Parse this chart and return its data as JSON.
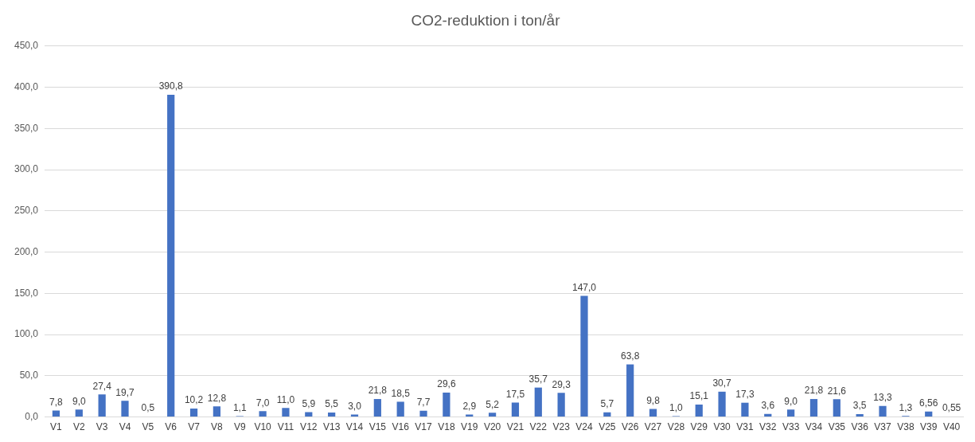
{
  "chart_data": {
    "type": "bar",
    "title": "CO2-reduktion i ton/år",
    "categories": [
      "V1",
      "V2",
      "V3",
      "V4",
      "V5",
      "V6",
      "V7",
      "V8",
      "V9",
      "V10",
      "V11",
      "V12",
      "V13",
      "V14",
      "V15",
      "V16",
      "V17",
      "V18",
      "V19",
      "V20",
      "V21",
      "V22",
      "V23",
      "V24",
      "V25",
      "V26",
      "V27",
      "V28",
      "V29",
      "V30",
      "V31",
      "V32",
      "V33",
      "V34",
      "V35",
      "V36",
      "V37",
      "V38",
      "V39",
      "V40"
    ],
    "values": [
      7.8,
      9.0,
      27.4,
      19.7,
      0.5,
      390.8,
      10.2,
      12.8,
      1.1,
      7.0,
      11.0,
      5.9,
      5.5,
      3.0,
      21.8,
      18.5,
      7.7,
      29.6,
      2.9,
      5.2,
      17.5,
      35.7,
      29.3,
      147.0,
      5.7,
      63.8,
      9.8,
      1.0,
      15.1,
      30.7,
      17.3,
      3.6,
      9.0,
      21.8,
      21.6,
      3.5,
      13.3,
      1.3,
      6.56,
      0.55
    ],
    "value_labels": [
      "7,8",
      "9,0",
      "27,4",
      "19,7",
      "0,5",
      "390,8",
      "10,2",
      "12,8",
      "1,1",
      "7,0",
      "11,0",
      "5,9",
      "5,5",
      "3,0",
      "21,8",
      "18,5",
      "7,7",
      "29,6",
      "2,9",
      "5,2",
      "17,5",
      "35,7",
      "29,3",
      "147,0",
      "5,7",
      "63,8",
      "9,8",
      "1,0",
      "15,1",
      "30,7",
      "17,3",
      "3,6",
      "9,0",
      "21,8",
      "21,6",
      "3,5",
      "13,3",
      "1,3",
      "6,56",
      "0,55"
    ],
    "color": "#4472c4",
    "ylim": [
      0,
      450
    ],
    "yticks": [
      {
        "value": 0,
        "label": "0,0"
      },
      {
        "value": 50,
        "label": "50,0"
      },
      {
        "value": 100,
        "label": "100,0"
      },
      {
        "value": 150,
        "label": "150,0"
      },
      {
        "value": 200,
        "label": "200,0"
      },
      {
        "value": 250,
        "label": "250,0"
      },
      {
        "value": 300,
        "label": "300,0"
      },
      {
        "value": 350,
        "label": "350,0"
      },
      {
        "value": 400,
        "label": "400,0"
      },
      {
        "value": 450,
        "label": "450,0"
      }
    ],
    "grid": "y"
  }
}
